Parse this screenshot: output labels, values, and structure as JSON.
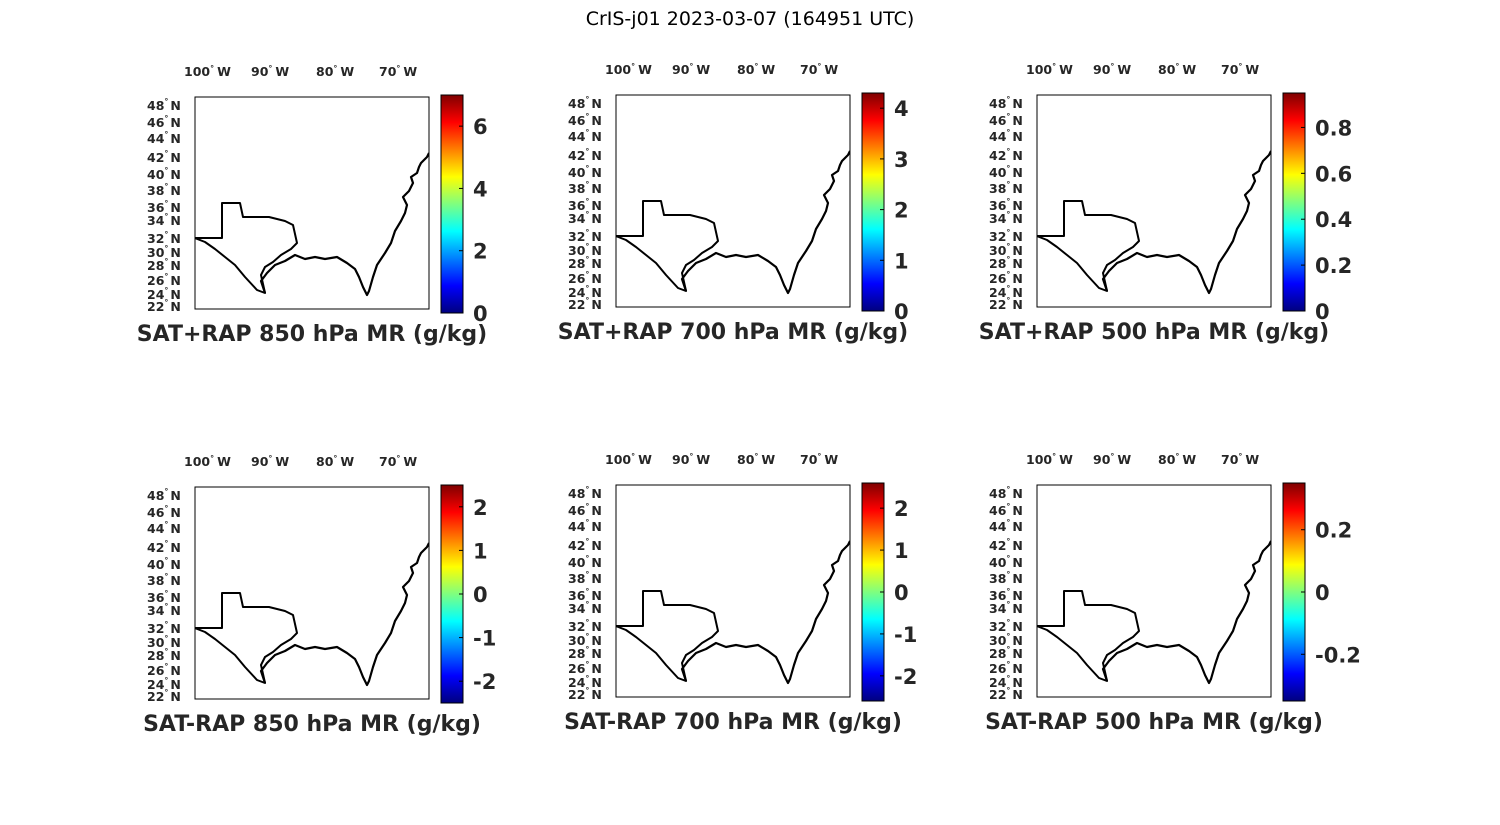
{
  "figure": {
    "title": "CrIS-j01 2023-03-07 (164951 UTC)"
  },
  "axes": {
    "lon_ticks": [
      "100",
      "90",
      "80",
      "70"
    ],
    "lon_suffix": "W",
    "lat_ticks": [
      "48",
      "46",
      "44",
      "42",
      "40",
      "38",
      "36",
      "34",
      "32",
      "30",
      "28",
      "26",
      "24",
      "22"
    ],
    "lat_suffix": "N",
    "degree_symbol": "°"
  },
  "colormap": "jet",
  "chart_data": [
    {
      "type": "heatmap",
      "title": "SAT+RAP 850 hPa MR (g/kg)",
      "colorbar": {
        "range": [
          0,
          7
        ],
        "ticks": [
          "0",
          "2",
          "4",
          "6"
        ]
      }
    },
    {
      "type": "heatmap",
      "title": "SAT+RAP 700 hPa MR (g/kg)",
      "colorbar": {
        "range": [
          0,
          4.3
        ],
        "ticks": [
          "0",
          "1",
          "2",
          "3",
          "4"
        ]
      }
    },
    {
      "type": "heatmap",
      "title": "SAT+RAP 500 hPa MR (g/kg)",
      "colorbar": {
        "range": [
          0,
          0.95
        ],
        "ticks": [
          "0",
          "0.2",
          "0.4",
          "0.6",
          "0.8"
        ]
      }
    },
    {
      "type": "heatmap",
      "title": "SAT-RAP 850 hPa MR (g/kg)",
      "colorbar": {
        "range": [
          -2.5,
          2.5
        ],
        "ticks": [
          "-2",
          "-1",
          "0",
          "1",
          "2"
        ]
      }
    },
    {
      "type": "heatmap",
      "title": "SAT-RAP 700 hPa MR (g/kg)",
      "colorbar": {
        "range": [
          -2.6,
          2.6
        ],
        "ticks": [
          "-2",
          "-1",
          "0",
          "1",
          "2"
        ]
      }
    },
    {
      "type": "heatmap",
      "title": "SAT-RAP 500 hPa MR (g/kg)",
      "colorbar": {
        "range": [
          -0.35,
          0.35
        ],
        "ticks": [
          "-0.2",
          "0",
          "0.2"
        ]
      }
    }
  ]
}
